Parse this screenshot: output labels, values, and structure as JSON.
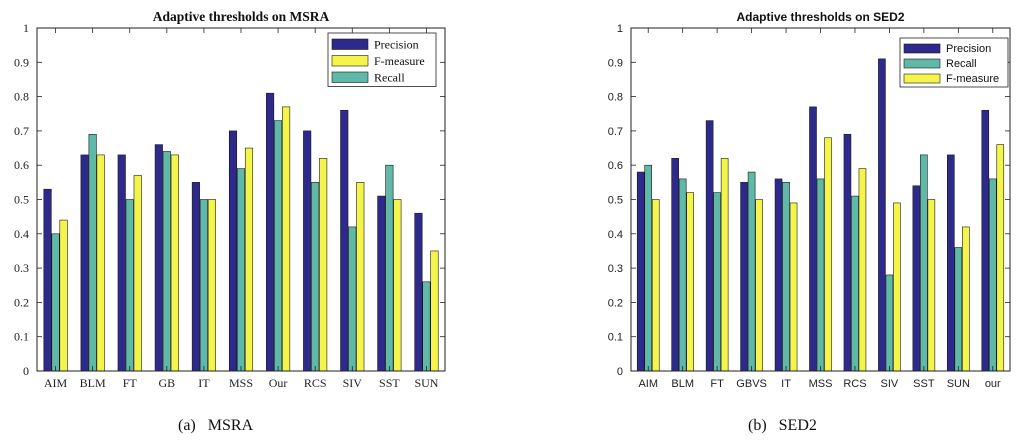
{
  "colors": {
    "precision": "#2e2a8c",
    "fmeasure": "#f4f44a",
    "recall": "#5fb8a8"
  },
  "chart_data": [
    {
      "type": "bar",
      "title": "Adaptive thresholds on MSRA",
      "caption_label": "(a)",
      "caption_text": "MSRA",
      "ylim": [
        0,
        1
      ],
      "yticks": [
        "0",
        "0.1",
        "0.2",
        "0.3",
        "0.4",
        "0.5",
        "0.6",
        "0.7",
        "0.8",
        "0.9",
        "1"
      ],
      "grid": false,
      "legend_placement": "top-right",
      "categories": [
        "AIM",
        "BLM",
        "FT",
        "GB",
        "IT",
        "MSS",
        "Our",
        "RCS",
        "SIV",
        "SST",
        "SUN"
      ],
      "series": [
        {
          "name": "Precision",
          "color_key": "precision",
          "values": [
            0.53,
            0.63,
            0.63,
            0.66,
            0.55,
            0.7,
            0.81,
            0.7,
            0.76,
            0.51,
            0.46
          ]
        },
        {
          "name": "Recall",
          "color_key": "recall",
          "values": [
            0.4,
            0.69,
            0.5,
            0.64,
            0.5,
            0.59,
            0.73,
            0.55,
            0.42,
            0.6,
            0.26
          ]
        },
        {
          "name": "F-measure",
          "color_key": "fmeasure",
          "values": [
            0.44,
            0.63,
            0.57,
            0.63,
            0.5,
            0.65,
            0.77,
            0.62,
            0.55,
            0.5,
            0.35
          ]
        }
      ],
      "legend": [
        {
          "name": "Precision",
          "color_key": "precision"
        },
        {
          "name": "F-measure",
          "color_key": "fmeasure"
        },
        {
          "name": "Recall",
          "color_key": "recall"
        }
      ]
    },
    {
      "type": "bar",
      "title": "Adaptive thresholds on SED2",
      "caption_label": "(b)",
      "caption_text": "SED2",
      "ylim": [
        0,
        1
      ],
      "yticks": [
        "0",
        "0.1",
        "0.2",
        "0.3",
        "0.4",
        "0.5",
        "0.6",
        "0.7",
        "0.8",
        "0.9",
        "1"
      ],
      "grid": false,
      "legend_placement": "top-right",
      "categories": [
        "AIM",
        "BLM",
        "FT",
        "GBVS",
        "IT",
        "MSS",
        "RCS",
        "SIV",
        "SST",
        "SUN",
        "our"
      ],
      "series": [
        {
          "name": "Precision",
          "color_key": "precision",
          "values": [
            0.58,
            0.62,
            0.73,
            0.55,
            0.56,
            0.77,
            0.69,
            0.91,
            0.54,
            0.63,
            0.76
          ]
        },
        {
          "name": "Recall",
          "color_key": "recall",
          "values": [
            0.6,
            0.56,
            0.52,
            0.58,
            0.55,
            0.56,
            0.51,
            0.28,
            0.63,
            0.36,
            0.56
          ]
        },
        {
          "name": "F-measure",
          "color_key": "fmeasure",
          "values": [
            0.5,
            0.52,
            0.62,
            0.5,
            0.49,
            0.68,
            0.59,
            0.49,
            0.5,
            0.42,
            0.66
          ]
        }
      ],
      "legend": [
        {
          "name": "Precision",
          "color_key": "precision"
        },
        {
          "name": "Recall",
          "color_key": "recall"
        },
        {
          "name": "F-measure",
          "color_key": "fmeasure"
        }
      ]
    }
  ]
}
